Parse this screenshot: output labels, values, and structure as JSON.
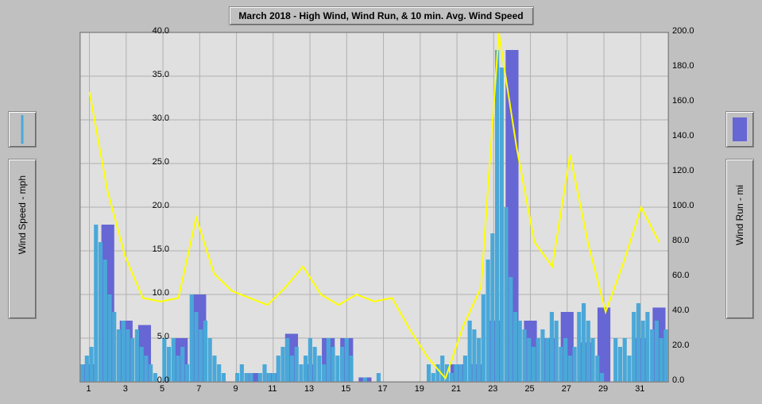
{
  "title": "March 2018 - High Wind, Wind Run, & 10 min. Avg. Wind Speed",
  "axis_left_label": "Wind Speed - mph",
  "axis_right_label": "Wind Run - mi",
  "colors": {
    "page_bg": "#c0c0c0",
    "plot_bg": "#e0e0e0",
    "grid": "#b0b0b0",
    "wind_run_line": "#ffff00",
    "bar_back": "#6666d4",
    "bar_front": "#4aa8d8",
    "tick_text": "#000000"
  },
  "chart": {
    "type": "combo-bar-line",
    "x_days": [
      1,
      3,
      5,
      7,
      9,
      11,
      13,
      15,
      17,
      19,
      21,
      23,
      25,
      27,
      29,
      31
    ],
    "y_left": {
      "min": 0.0,
      "max": 40.0,
      "step": 5.0
    },
    "y_right": {
      "min": 0.0,
      "max": 200.0,
      "step": 20.0
    },
    "wind_run": [
      166,
      110,
      72,
      48,
      46,
      48,
      94,
      62,
      52,
      48,
      44,
      54,
      66,
      50,
      44,
      50,
      46,
      48,
      30,
      14,
      2,
      32,
      54,
      200,
      134,
      80,
      66,
      130,
      80,
      40,
      68,
      100,
      80
    ],
    "back_bars": [
      2,
      18,
      7,
      6.5,
      0,
      5,
      10,
      0,
      0,
      1,
      1,
      5.5,
      2,
      5,
      5,
      0.5,
      0,
      0,
      0,
      0,
      2,
      2,
      7,
      38,
      7,
      5,
      8,
      4.5,
      8.5,
      0,
      5,
      8.5,
      7
    ],
    "front_bars_dense": [
      2,
      3,
      4,
      18,
      16,
      14,
      10,
      8,
      6,
      7,
      6,
      5,
      6,
      4,
      3,
      2,
      1,
      0,
      5,
      4,
      5,
      3,
      4,
      2,
      10,
      8,
      6,
      7,
      5,
      3,
      2,
      1,
      0,
      0,
      1,
      2,
      1,
      1,
      0,
      1,
      2,
      1,
      1,
      3,
      4,
      5,
      3,
      4,
      2,
      3,
      5,
      4,
      3,
      2,
      5,
      4,
      3,
      4,
      5,
      3,
      0,
      0,
      0.5,
      0,
      0,
      1,
      0,
      0,
      0,
      0,
      0,
      0,
      0,
      0,
      0,
      0,
      2,
      1,
      2,
      3,
      2,
      1,
      2,
      2,
      3,
      7,
      6,
      5,
      10,
      14,
      17,
      38,
      36,
      20,
      12,
      8,
      7,
      6,
      5,
      4,
      5,
      6,
      5,
      8,
      7,
      4,
      5,
      3,
      4,
      8,
      9,
      7,
      5,
      3,
      1,
      0,
      0,
      5,
      4,
      5,
      3,
      8,
      9,
      7,
      8,
      6,
      7,
      5,
      6
    ]
  },
  "fonts": {
    "title_pt": 12,
    "axis_label_pt": 12,
    "tick_pt": 11
  }
}
